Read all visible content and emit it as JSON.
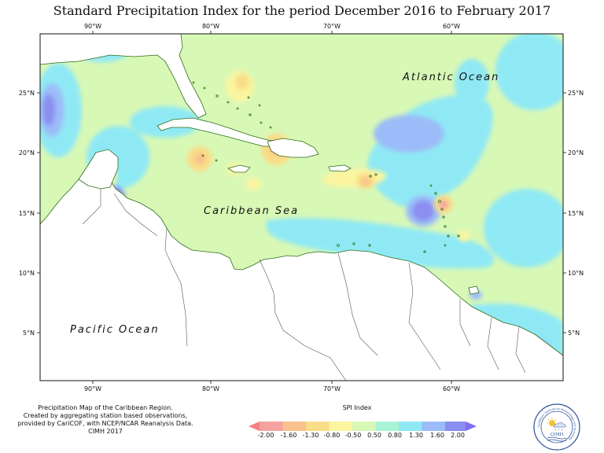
{
  "title": "Standard Precipitation Index for the period December 2016 to February 2017",
  "map": {
    "lon_labels": [
      "90°W",
      "80°W",
      "70°W",
      "60°W"
    ],
    "lat_labels": [
      "25°N",
      "20°N",
      "15°N",
      "10°N",
      "5°N"
    ],
    "place_labels": {
      "atlantic": "Atlantic Ocean",
      "caribbean": "Caribbean Sea",
      "pacific": "Pacific Ocean"
    },
    "lon_range": [
      -94.5,
      -51
    ],
    "lat_range": [
      1,
      30
    ]
  },
  "credit": {
    "line1": "Precipitation Map of the Caribbean Region.",
    "line2": "Created by aggregating station based observations,",
    "line3": "provided by CariCOF, with NCEP/NCAR Reanalysis Data.",
    "line4": "CIMH 2017"
  },
  "legend": {
    "title": "SPI Index",
    "labels": [
      "-2.00",
      "-1.60",
      "-1.30",
      "-0.80",
      "-0.50",
      "0.50",
      "0.80",
      "1.30",
      "1.60",
      "2.00"
    ],
    "colors": [
      "#f4a3a0",
      "#f8c18d",
      "#f9dd87",
      "#fbf5a0",
      "#d8f8b6",
      "#a9f3d6",
      "#8fe9f5",
      "#9bbcf8",
      "#8c8ef0"
    ],
    "end_colors": [
      "#f48280",
      "#7e6df0"
    ]
  },
  "logo": {
    "text": "CIMH",
    "ring_text": "Caribbean Institute for Meteorology and Hydrology"
  },
  "colors": {
    "normal": "#d8f8b6",
    "wet_light": "#8fe9f5",
    "wet_mid": "#9bbcf8",
    "wet_high": "#8c8ef0",
    "dry_light": "#fbf5a0",
    "dry_mid": "#f9dd87",
    "dry_high": "#f4a3a0",
    "coast": "#2e6b1a"
  }
}
